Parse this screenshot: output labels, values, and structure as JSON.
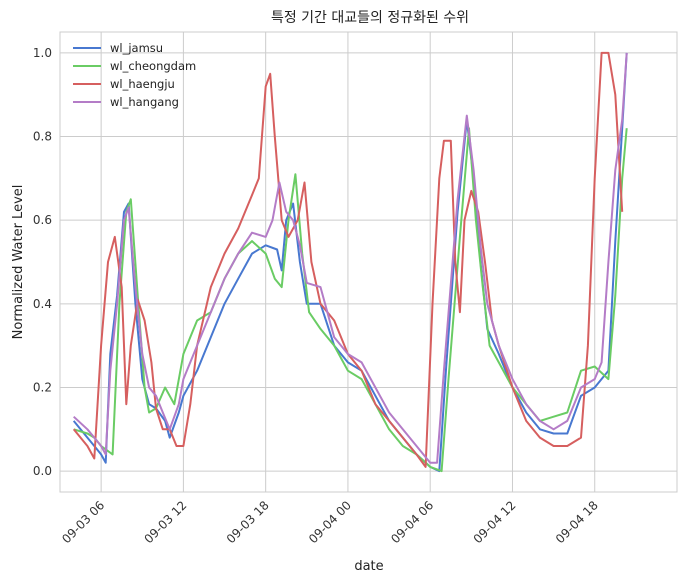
{
  "chart_data": {
    "type": "line",
    "title": "특정 기간 대교들의 정규화된 수위",
    "xlabel": "date",
    "ylabel": "Normalized Water Level",
    "x_range": [
      "2023-09-03 03:00",
      "2023-09-05 00:00"
    ],
    "x_ticks": [
      {
        "t": "2023-09-03 06:00",
        "label": "09-03 06"
      },
      {
        "t": "2023-09-03 12:00",
        "label": "09-03 12"
      },
      {
        "t": "2023-09-03 18:00",
        "label": "09-03 18"
      },
      {
        "t": "2023-09-04 00:00",
        "label": "09-04 00"
      },
      {
        "t": "2023-09-04 06:00",
        "label": "09-04 06"
      },
      {
        "t": "2023-09-04 12:00",
        "label": "09-04 12"
      },
      {
        "t": "2023-09-04 18:00",
        "label": "09-04 18"
      }
    ],
    "ylim": [
      -0.05,
      1.05
    ],
    "y_ticks": [
      "0.0",
      "0.2",
      "0.4",
      "0.6",
      "0.8",
      "1.0"
    ],
    "grid": true,
    "legend_position": "top-left",
    "series": [
      {
        "name": "wl_jamsu",
        "color": "#4878d0",
        "points": [
          [
            "2023-09-03 04:00",
            0.12
          ],
          [
            "2023-09-03 05:00",
            0.08
          ],
          [
            "2023-09-03 05:30",
            0.06
          ],
          [
            "2023-09-03 06:00",
            0.04
          ],
          [
            "2023-09-03 06:20",
            0.02
          ],
          [
            "2023-09-03 06:40",
            0.28
          ],
          [
            "2023-09-03 07:10",
            0.42
          ],
          [
            "2023-09-03 07:40",
            0.62
          ],
          [
            "2023-09-03 08:00",
            0.64
          ],
          [
            "2023-09-03 08:30",
            0.4
          ],
          [
            "2023-09-03 09:00",
            0.22
          ],
          [
            "2023-09-03 09:30",
            0.16
          ],
          [
            "2023-09-03 10:00",
            0.15
          ],
          [
            "2023-09-03 10:40",
            0.12
          ],
          [
            "2023-09-03 11:00",
            0.08
          ],
          [
            "2023-09-03 11:40",
            0.14
          ],
          [
            "2023-09-03 12:00",
            0.18
          ],
          [
            "2023-09-03 13:00",
            0.24
          ],
          [
            "2023-09-03 14:00",
            0.32
          ],
          [
            "2023-09-03 15:00",
            0.4
          ],
          [
            "2023-09-03 16:00",
            0.46
          ],
          [
            "2023-09-03 17:00",
            0.52
          ],
          [
            "2023-09-03 18:00",
            0.54
          ],
          [
            "2023-09-03 18:50",
            0.53
          ],
          [
            "2023-09-03 19:10",
            0.48
          ],
          [
            "2023-09-03 19:30",
            0.6
          ],
          [
            "2023-09-03 20:00",
            0.64
          ],
          [
            "2023-09-03 20:30",
            0.5
          ],
          [
            "2023-09-03 21:00",
            0.4
          ],
          [
            "2023-09-03 22:00",
            0.4
          ],
          [
            "2023-09-03 23:00",
            0.3
          ],
          [
            "2023-09-04 00:00",
            0.26
          ],
          [
            "2023-09-04 01:00",
            0.24
          ],
          [
            "2023-09-04 02:00",
            0.18
          ],
          [
            "2023-09-04 03:00",
            0.12
          ],
          [
            "2023-09-04 04:00",
            0.08
          ],
          [
            "2023-09-04 05:00",
            0.04
          ],
          [
            "2023-09-04 06:00",
            0.01
          ],
          [
            "2023-09-04 06:40",
            0.0
          ],
          [
            "2023-09-04 07:10",
            0.25
          ],
          [
            "2023-09-04 08:00",
            0.62
          ],
          [
            "2023-09-04 08:40",
            0.84
          ],
          [
            "2023-09-04 09:10",
            0.7
          ],
          [
            "2023-09-04 09:40",
            0.5
          ],
          [
            "2023-09-04 10:10",
            0.34
          ],
          [
            "2023-09-04 11:00",
            0.28
          ],
          [
            "2023-09-04 12:00",
            0.2
          ],
          [
            "2023-09-04 13:00",
            0.14
          ],
          [
            "2023-09-04 14:00",
            0.1
          ],
          [
            "2023-09-04 15:00",
            0.09
          ],
          [
            "2023-09-04 16:00",
            0.09
          ],
          [
            "2023-09-04 17:00",
            0.18
          ],
          [
            "2023-09-04 18:00",
            0.2
          ],
          [
            "2023-09-04 19:00",
            0.24
          ],
          [
            "2023-09-04 19:30",
            0.55
          ],
          [
            "2023-09-04 20:00",
            0.82
          ],
          [
            "2023-09-04 20:20",
            1.0
          ]
        ]
      },
      {
        "name": "wl_cheongdam",
        "color": "#6acc64",
        "points": [
          [
            "2023-09-03 04:00",
            0.1
          ],
          [
            "2023-09-03 05:00",
            0.09
          ],
          [
            "2023-09-03 05:30",
            0.08
          ],
          [
            "2023-09-03 06:00",
            0.06
          ],
          [
            "2023-09-03 06:50",
            0.04
          ],
          [
            "2023-09-03 07:20",
            0.4
          ],
          [
            "2023-09-03 07:50",
            0.62
          ],
          [
            "2023-09-03 08:10",
            0.65
          ],
          [
            "2023-09-03 08:40",
            0.42
          ],
          [
            "2023-09-03 09:10",
            0.2
          ],
          [
            "2023-09-03 09:30",
            0.14
          ],
          [
            "2023-09-03 10:00",
            0.15
          ],
          [
            "2023-09-03 10:40",
            0.2
          ],
          [
            "2023-09-03 11:20",
            0.16
          ],
          [
            "2023-09-03 12:00",
            0.28
          ],
          [
            "2023-09-03 13:00",
            0.36
          ],
          [
            "2023-09-03 14:00",
            0.38
          ],
          [
            "2023-09-03 15:00",
            0.46
          ],
          [
            "2023-09-03 16:00",
            0.52
          ],
          [
            "2023-09-03 17:00",
            0.55
          ],
          [
            "2023-09-03 18:00",
            0.52
          ],
          [
            "2023-09-03 18:40",
            0.46
          ],
          [
            "2023-09-03 19:10",
            0.44
          ],
          [
            "2023-09-03 19:40",
            0.6
          ],
          [
            "2023-09-03 20:10",
            0.71
          ],
          [
            "2023-09-03 20:40",
            0.52
          ],
          [
            "2023-09-03 21:10",
            0.38
          ],
          [
            "2023-09-03 22:00",
            0.34
          ],
          [
            "2023-09-03 23:00",
            0.3
          ],
          [
            "2023-09-04 00:00",
            0.24
          ],
          [
            "2023-09-04 01:00",
            0.22
          ],
          [
            "2023-09-04 02:00",
            0.16
          ],
          [
            "2023-09-04 03:00",
            0.1
          ],
          [
            "2023-09-04 04:00",
            0.06
          ],
          [
            "2023-09-04 05:00",
            0.04
          ],
          [
            "2023-09-04 06:00",
            0.01
          ],
          [
            "2023-09-04 06:50",
            0.0
          ],
          [
            "2023-09-04 07:20",
            0.22
          ],
          [
            "2023-09-04 08:10",
            0.56
          ],
          [
            "2023-09-04 08:50",
            0.82
          ],
          [
            "2023-09-04 09:20",
            0.6
          ],
          [
            "2023-09-04 09:50",
            0.44
          ],
          [
            "2023-09-04 10:20",
            0.3
          ],
          [
            "2023-09-04 11:00",
            0.26
          ],
          [
            "2023-09-04 12:00",
            0.2
          ],
          [
            "2023-09-04 13:00",
            0.16
          ],
          [
            "2023-09-04 14:00",
            0.12
          ],
          [
            "2023-09-04 15:00",
            0.13
          ],
          [
            "2023-09-04 16:00",
            0.14
          ],
          [
            "2023-09-04 17:00",
            0.24
          ],
          [
            "2023-09-04 18:00",
            0.25
          ],
          [
            "2023-09-04 19:00",
            0.22
          ],
          [
            "2023-09-04 19:30",
            0.42
          ],
          [
            "2023-09-04 20:00",
            0.7
          ],
          [
            "2023-09-04 20:20",
            0.82
          ]
        ]
      },
      {
        "name": "wl_haengju",
        "color": "#d65f5f",
        "points": [
          [
            "2023-09-03 04:00",
            0.1
          ],
          [
            "2023-09-03 05:00",
            0.06
          ],
          [
            "2023-09-03 05:30",
            0.03
          ],
          [
            "2023-09-03 06:00",
            0.3
          ],
          [
            "2023-09-03 06:30",
            0.5
          ],
          [
            "2023-09-03 07:00",
            0.56
          ],
          [
            "2023-09-03 07:30",
            0.44
          ],
          [
            "2023-09-03 07:50",
            0.16
          ],
          [
            "2023-09-03 08:10",
            0.3
          ],
          [
            "2023-09-03 08:40",
            0.41
          ],
          [
            "2023-09-03 09:10",
            0.36
          ],
          [
            "2023-09-03 09:40",
            0.26
          ],
          [
            "2023-09-03 10:00",
            0.15
          ],
          [
            "2023-09-03 10:30",
            0.1
          ],
          [
            "2023-09-03 11:00",
            0.1
          ],
          [
            "2023-09-03 11:30",
            0.06
          ],
          [
            "2023-09-03 12:00",
            0.06
          ],
          [
            "2023-09-03 12:30",
            0.16
          ],
          [
            "2023-09-03 13:00",
            0.3
          ],
          [
            "2023-09-03 14:00",
            0.44
          ],
          [
            "2023-09-03 15:00",
            0.52
          ],
          [
            "2023-09-03 16:00",
            0.58
          ],
          [
            "2023-09-03 17:00",
            0.66
          ],
          [
            "2023-09-03 17:30",
            0.7
          ],
          [
            "2023-09-03 18:00",
            0.92
          ],
          [
            "2023-09-03 18:20",
            0.95
          ],
          [
            "2023-09-03 18:40",
            0.8
          ],
          [
            "2023-09-03 19:10",
            0.6
          ],
          [
            "2023-09-03 19:40",
            0.56
          ],
          [
            "2023-09-03 20:20",
            0.6
          ],
          [
            "2023-09-03 20:50",
            0.69
          ],
          [
            "2023-09-03 21:20",
            0.5
          ],
          [
            "2023-09-03 22:00",
            0.4
          ],
          [
            "2023-09-03 23:00",
            0.36
          ],
          [
            "2023-09-04 00:00",
            0.28
          ],
          [
            "2023-09-04 01:00",
            0.24
          ],
          [
            "2023-09-04 02:00",
            0.16
          ],
          [
            "2023-09-04 03:00",
            0.12
          ],
          [
            "2023-09-04 04:00",
            0.08
          ],
          [
            "2023-09-04 05:00",
            0.04
          ],
          [
            "2023-09-04 05:40",
            0.01
          ],
          [
            "2023-09-04 06:10",
            0.4
          ],
          [
            "2023-09-04 06:40",
            0.7
          ],
          [
            "2023-09-04 07:00",
            0.79
          ],
          [
            "2023-09-04 07:30",
            0.79
          ],
          [
            "2023-09-04 07:50",
            0.5
          ],
          [
            "2023-09-04 08:10",
            0.38
          ],
          [
            "2023-09-04 08:30",
            0.6
          ],
          [
            "2023-09-04 09:00",
            0.67
          ],
          [
            "2023-09-04 09:30",
            0.62
          ],
          [
            "2023-09-04 10:00",
            0.5
          ],
          [
            "2023-09-04 10:30",
            0.36
          ],
          [
            "2023-09-04 11:00",
            0.3
          ],
          [
            "2023-09-04 12:00",
            0.2
          ],
          [
            "2023-09-04 13:00",
            0.12
          ],
          [
            "2023-09-04 14:00",
            0.08
          ],
          [
            "2023-09-04 15:00",
            0.06
          ],
          [
            "2023-09-04 16:00",
            0.06
          ],
          [
            "2023-09-04 17:00",
            0.08
          ],
          [
            "2023-09-04 17:30",
            0.3
          ],
          [
            "2023-09-04 18:00",
            0.7
          ],
          [
            "2023-09-04 18:30",
            1.0
          ],
          [
            "2023-09-04 19:00",
            1.0
          ],
          [
            "2023-09-04 19:30",
            0.9
          ],
          [
            "2023-09-04 20:00",
            0.62
          ]
        ]
      },
      {
        "name": "wl_hangang",
        "color": "#b47cc7",
        "points": [
          [
            "2023-09-03 04:00",
            0.13
          ],
          [
            "2023-09-03 05:00",
            0.1
          ],
          [
            "2023-09-03 05:30",
            0.08
          ],
          [
            "2023-09-03 06:00",
            0.06
          ],
          [
            "2023-09-03 06:20",
            0.04
          ],
          [
            "2023-09-03 06:40",
            0.24
          ],
          [
            "2023-09-03 07:10",
            0.4
          ],
          [
            "2023-09-03 07:40",
            0.6
          ],
          [
            "2023-09-03 08:00",
            0.63
          ],
          [
            "2023-09-03 08:30",
            0.44
          ],
          [
            "2023-09-03 09:00",
            0.28
          ],
          [
            "2023-09-03 09:30",
            0.2
          ],
          [
            "2023-09-03 10:00",
            0.18
          ],
          [
            "2023-09-03 10:30",
            0.14
          ],
          [
            "2023-09-03 11:00",
            0.1
          ],
          [
            "2023-09-03 11:40",
            0.16
          ],
          [
            "2023-09-03 12:00",
            0.22
          ],
          [
            "2023-09-03 13:00",
            0.3
          ],
          [
            "2023-09-03 14:00",
            0.38
          ],
          [
            "2023-09-03 15:00",
            0.46
          ],
          [
            "2023-09-03 16:00",
            0.52
          ],
          [
            "2023-09-03 17:00",
            0.57
          ],
          [
            "2023-09-03 18:00",
            0.56
          ],
          [
            "2023-09-03 18:30",
            0.6
          ],
          [
            "2023-09-03 19:00",
            0.69
          ],
          [
            "2023-09-03 19:30",
            0.62
          ],
          [
            "2023-09-03 20:00",
            0.6
          ],
          [
            "2023-09-03 20:30",
            0.54
          ],
          [
            "2023-09-03 21:00",
            0.45
          ],
          [
            "2023-09-03 22:00",
            0.44
          ],
          [
            "2023-09-03 23:00",
            0.32
          ],
          [
            "2023-09-04 00:00",
            0.28
          ],
          [
            "2023-09-04 01:00",
            0.26
          ],
          [
            "2023-09-04 02:00",
            0.2
          ],
          [
            "2023-09-04 03:00",
            0.14
          ],
          [
            "2023-09-04 04:00",
            0.1
          ],
          [
            "2023-09-04 05:00",
            0.06
          ],
          [
            "2023-09-04 06:00",
            0.02
          ],
          [
            "2023-09-04 06:30",
            0.02
          ],
          [
            "2023-09-04 07:00",
            0.24
          ],
          [
            "2023-09-04 08:00",
            0.65
          ],
          [
            "2023-09-04 08:40",
            0.85
          ],
          [
            "2023-09-04 09:10",
            0.72
          ],
          [
            "2023-09-04 09:40",
            0.54
          ],
          [
            "2023-09-04 10:10",
            0.4
          ],
          [
            "2023-09-04 11:00",
            0.3
          ],
          [
            "2023-09-04 12:00",
            0.22
          ],
          [
            "2023-09-04 13:00",
            0.16
          ],
          [
            "2023-09-04 14:00",
            0.12
          ],
          [
            "2023-09-04 15:00",
            0.1
          ],
          [
            "2023-09-04 16:00",
            0.12
          ],
          [
            "2023-09-04 17:00",
            0.2
          ],
          [
            "2023-09-04 18:00",
            0.22
          ],
          [
            "2023-09-04 18:30",
            0.26
          ],
          [
            "2023-09-04 19:00",
            0.5
          ],
          [
            "2023-09-04 19:30",
            0.72
          ],
          [
            "2023-09-04 20:00",
            0.84
          ],
          [
            "2023-09-04 20:20",
            1.0
          ]
        ]
      }
    ]
  }
}
